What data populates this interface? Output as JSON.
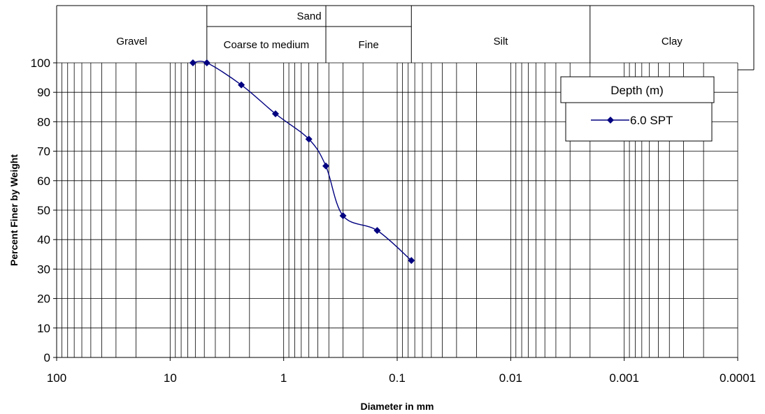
{
  "chart_data": {
    "type": "line",
    "x_scale": "log",
    "x_reversed": true,
    "xlim": [
      100,
      0.0001
    ],
    "ylim": [
      0,
      100
    ],
    "y_step": 10,
    "xlabel": "Diameter in mm",
    "ylabel": "Percent Finer by Weight",
    "x_tick_labels": [
      "100",
      "10",
      "1",
      "0.1",
      "0.01",
      "0.001",
      "0.0001"
    ],
    "y_tick_labels": [
      "0",
      "10",
      "20",
      "30",
      "40",
      "50",
      "60",
      "70",
      "80",
      "90",
      "100"
    ],
    "grid": true,
    "legend": {
      "title": "Depth (m)",
      "placement": "top-right"
    },
    "series": [
      {
        "name": "6.0 SPT",
        "color": "#000080",
        "marker": "diamond",
        "smooth": true,
        "points": [
          {
            "x": 6.3,
            "y": 100
          },
          {
            "x": 4.75,
            "y": 100
          },
          {
            "x": 2.36,
            "y": 92.5
          },
          {
            "x": 1.18,
            "y": 82.7
          },
          {
            "x": 0.6,
            "y": 74.1
          },
          {
            "x": 0.425,
            "y": 65
          },
          {
            "x": 0.3,
            "y": 48.1
          },
          {
            "x": 0.15,
            "y": 43.1
          },
          {
            "x": 0.075,
            "y": 32.9
          }
        ]
      }
    ],
    "classification_bands": [
      {
        "label": "Gravel",
        "from": 100,
        "to": 4.75
      },
      {
        "group": "Sand",
        "label": "Coarse to medium",
        "from": 4.75,
        "to": 0.425
      },
      {
        "group": "Sand",
        "label": "Fine",
        "from": 0.425,
        "to": 0.075
      },
      {
        "label": "Silt",
        "from": 0.075,
        "to": 0.002
      },
      {
        "label": "Clay",
        "from": 0.002,
        "to": 0.0001
      }
    ]
  }
}
